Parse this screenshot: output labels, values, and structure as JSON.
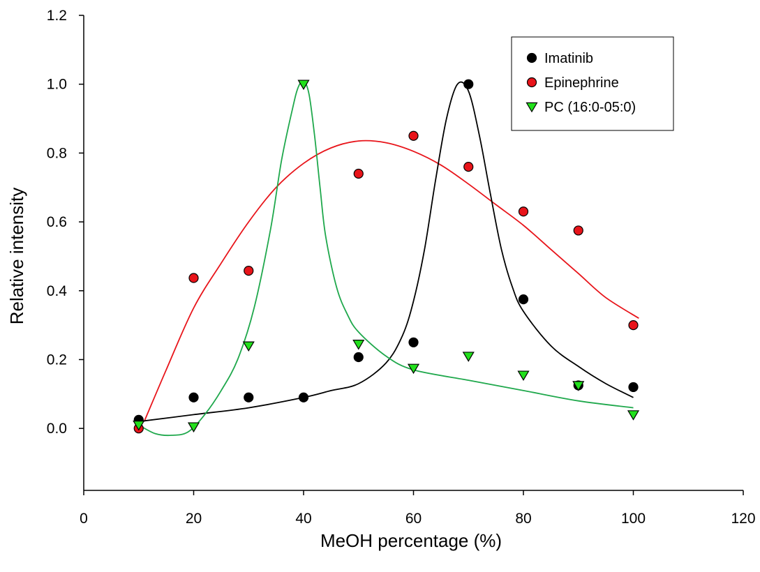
{
  "chart_data": {
    "type": "scatter",
    "xlabel": "MeOH percentage (%)",
    "ylabel": "Relative intensity",
    "xlim": [
      0,
      120
    ],
    "ylim": [
      -0.18,
      1.2
    ],
    "x_ticks": [
      0,
      20,
      40,
      60,
      80,
      100,
      120
    ],
    "x_tick_labels": [
      "0",
      "20",
      "40",
      "60",
      "80",
      "100",
      "120"
    ],
    "y_ticks": [
      0.0,
      0.2,
      0.4,
      0.6,
      0.8,
      1.0,
      1.2
    ],
    "y_tick_labels": [
      "0.0",
      "0.2",
      "0.4",
      "0.6",
      "0.8",
      "1.0",
      "1.2"
    ],
    "grid": false,
    "legend_position": "top-right",
    "series": [
      {
        "name": "Imatinib",
        "marker": "circle",
        "color": "#000000",
        "x": [
          10,
          20,
          30,
          40,
          50,
          60,
          70,
          80,
          90,
          100
        ],
        "y": [
          0.025,
          0.09,
          0.09,
          0.09,
          0.207,
          0.25,
          1.0,
          0.375,
          0.125,
          0.12
        ],
        "fit_curve": {
          "color": "#000000",
          "x": [
            10,
            20,
            30,
            40,
            45,
            50,
            55,
            58,
            60,
            62,
            64,
            66,
            68,
            70,
            72,
            74,
            76,
            78,
            80,
            85,
            90,
            95,
            100
          ],
          "y": [
            0.02,
            0.04,
            0.06,
            0.09,
            0.11,
            0.13,
            0.19,
            0.27,
            0.37,
            0.52,
            0.72,
            0.9,
            1.0,
            0.98,
            0.85,
            0.68,
            0.52,
            0.41,
            0.34,
            0.24,
            0.18,
            0.13,
            0.09
          ]
        }
      },
      {
        "name": "Epinephrine",
        "marker": "circle",
        "color": "#e8141a",
        "x": [
          10,
          20,
          30,
          50,
          60,
          70,
          80,
          90,
          100
        ],
        "y": [
          0.0,
          0.437,
          0.458,
          0.74,
          0.85,
          0.76,
          0.63,
          0.575,
          0.3
        ],
        "fit_curve": {
          "color": "#e8141a",
          "x": [
            11,
            15,
            20,
            25,
            30,
            35,
            40,
            45,
            50,
            55,
            60,
            65,
            70,
            75,
            80,
            85,
            90,
            95,
            101
          ],
          "y": [
            0.02,
            0.17,
            0.35,
            0.48,
            0.6,
            0.7,
            0.77,
            0.815,
            0.835,
            0.83,
            0.805,
            0.765,
            0.71,
            0.65,
            0.59,
            0.52,
            0.45,
            0.38,
            0.32
          ]
        }
      },
      {
        "name": "PC (16:0-05:0)",
        "marker": "triangle-down",
        "color": "#22e01c",
        "x": [
          10,
          20,
          30,
          40,
          50,
          60,
          70,
          80,
          90,
          100
        ],
        "y": [
          0.01,
          0.005,
          0.24,
          1.0,
          0.245,
          0.175,
          0.21,
          0.155,
          0.125,
          0.04
        ],
        "fit_curve": {
          "color": "#1fa84c",
          "x": [
            10,
            13,
            16,
            19,
            22,
            25,
            28,
            31,
            34,
            36,
            38,
            39,
            40,
            41,
            42,
            43,
            44,
            46,
            48,
            50,
            55,
            60,
            70,
            80,
            90,
            100
          ],
          "y": [
            0.01,
            -0.015,
            -0.02,
            -0.01,
            0.04,
            0.11,
            0.2,
            0.35,
            0.58,
            0.78,
            0.93,
            0.99,
            1.01,
            0.97,
            0.85,
            0.7,
            0.56,
            0.41,
            0.33,
            0.28,
            0.21,
            0.17,
            0.14,
            0.11,
            0.08,
            0.06
          ]
        }
      }
    ]
  }
}
